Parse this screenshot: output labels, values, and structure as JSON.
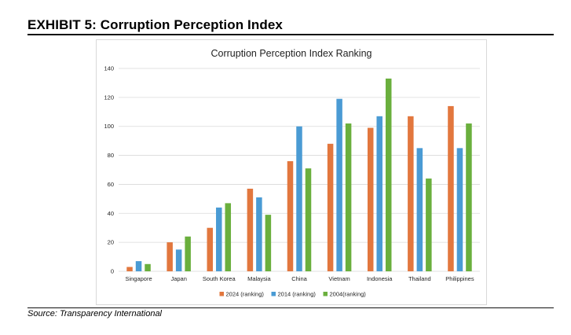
{
  "exhibit": {
    "title": "EXHIBIT 5: Corruption Perception Index",
    "source": "Source:  Transparency International"
  },
  "colors": {
    "s2024": "#E2773E",
    "s2014": "#4A9BD4",
    "s2004": "#6AAF3D",
    "grid": "#d9d9d9"
  },
  "chart_data": {
    "type": "bar",
    "title": "Corruption Perception Index Ranking",
    "xlabel": "",
    "ylabel": "",
    "ylim": [
      0,
      140
    ],
    "yticks": [
      0,
      20,
      40,
      60,
      80,
      100,
      120,
      140
    ],
    "grid": true,
    "legend_position": "bottom",
    "categories": [
      "Singapore",
      "Japan",
      "South Korea",
      "Malaysia",
      "China",
      "Vietnam",
      "Indonesia",
      "Thailand",
      "Philippines"
    ],
    "series": [
      {
        "name": "2024 (ranking)",
        "color": "#E2773E",
        "values": [
          3,
          20,
          30,
          57,
          76,
          88,
          99,
          107,
          114
        ]
      },
      {
        "name": "2014 (ranking)",
        "color": "#4A9BD4",
        "values": [
          7,
          15,
          44,
          51,
          100,
          119,
          107,
          85,
          85
        ]
      },
      {
        "name": "2004(ranking)",
        "color": "#6AAF3D",
        "values": [
          5,
          24,
          47,
          39,
          71,
          102,
          133,
          64,
          102
        ]
      }
    ]
  }
}
